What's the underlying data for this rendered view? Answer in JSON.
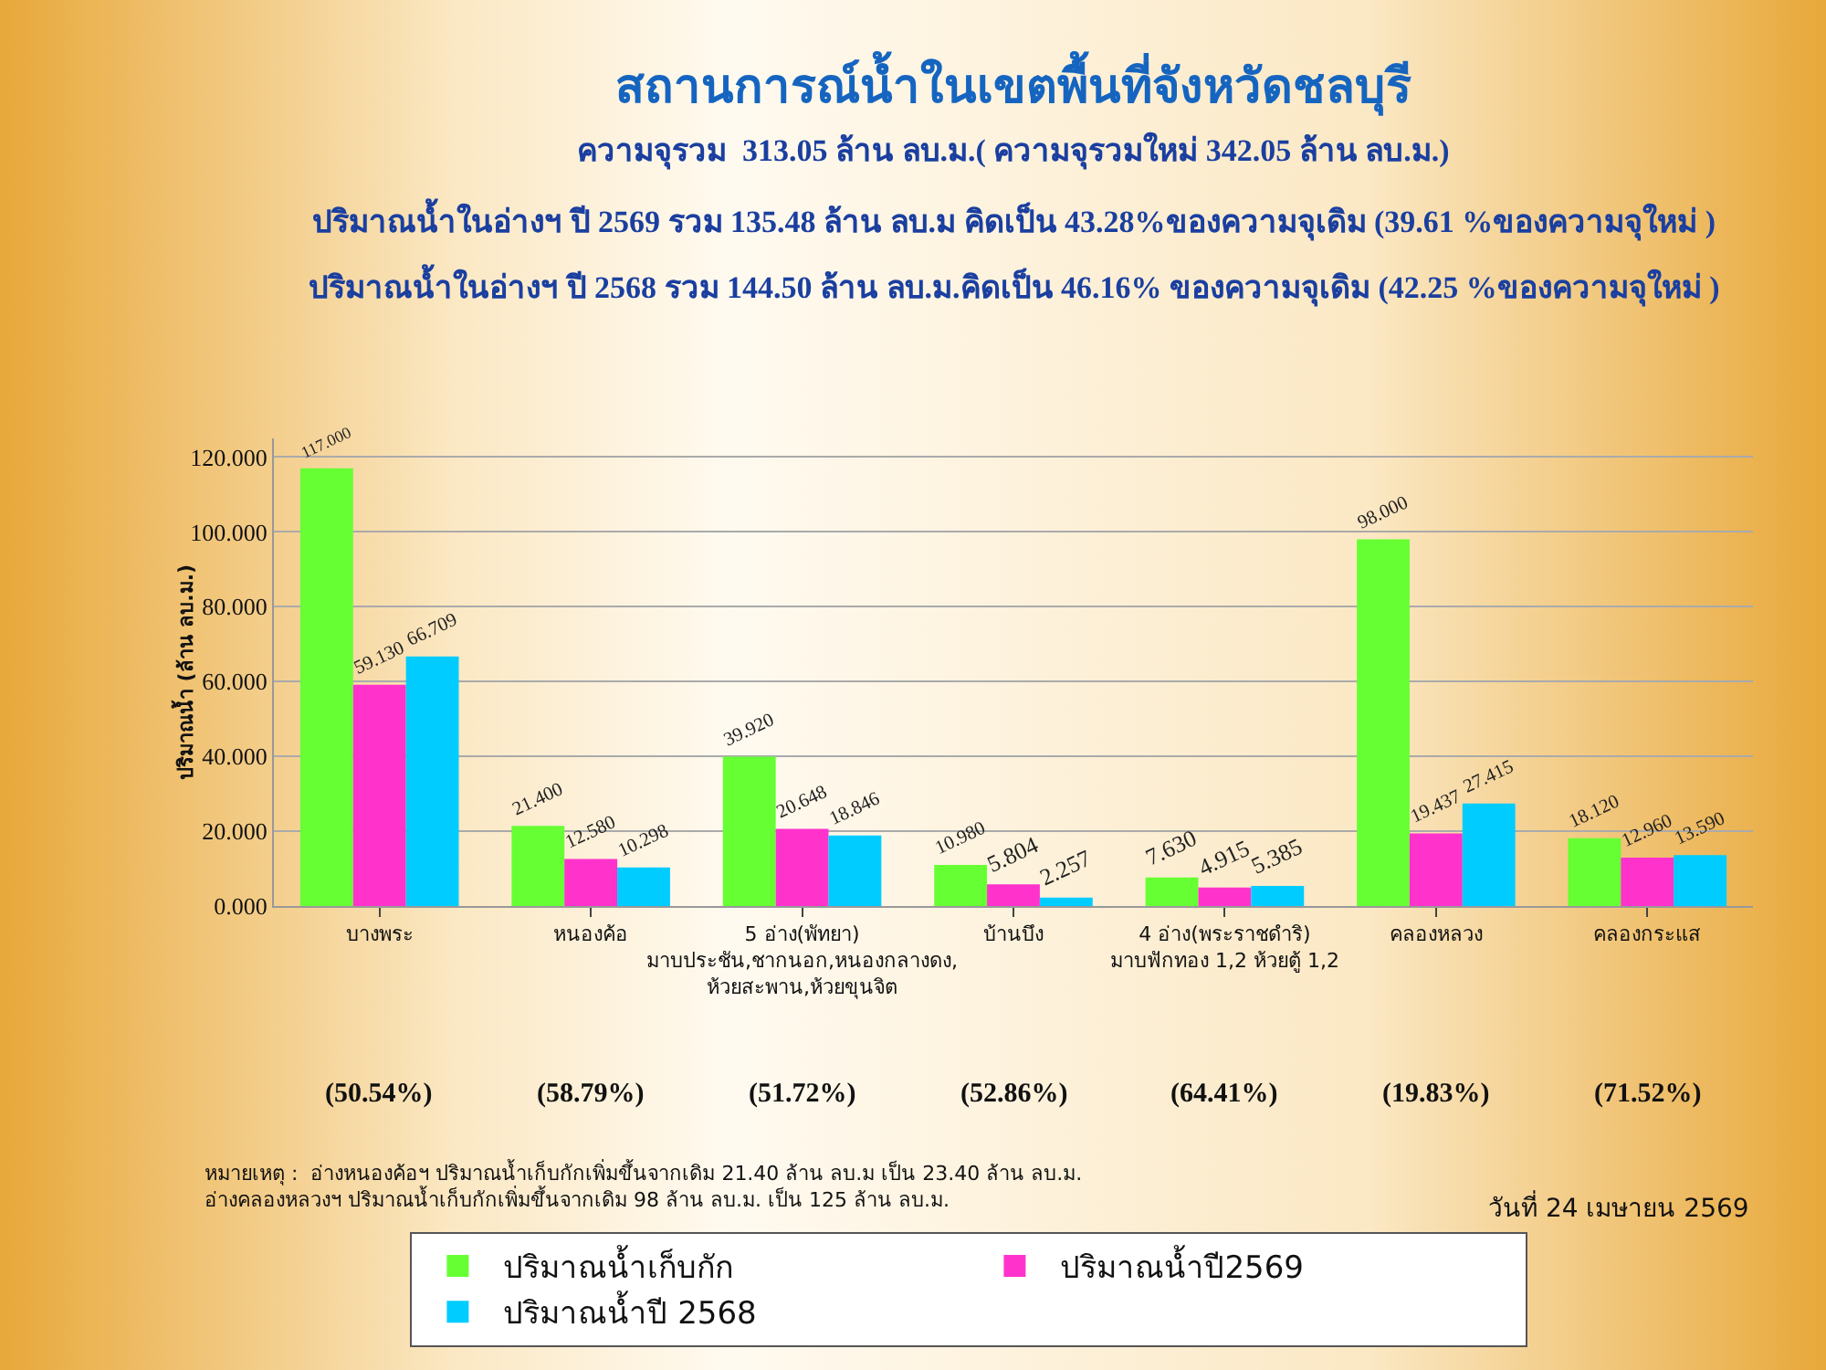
{
  "chart_data": {
    "type": "bar",
    "title": "สถานการณ์น้ำในเขตพื้นที่จังหวัดชลบุรี",
    "subtitle": "ความจุรวม  313.05 ล้าน ลบ.ม.( ความจุรวมใหม่ 342.05 ล้าน ลบ.ม.)\nปริมาณน้ำในอ่างฯ ปี 2569 รวม 135.48 ล้าน ลบ.ม คิดเป็น 43.28%ของความจุเดิม (39.61 %ของความจุใหม่ )\nปริมาณน้ำในอ่างฯ ปี 2568 รวม 144.50 ล้าน ลบ.ม.คิดเป็น 46.16% ของความจุเดิม (42.25 %ของความจุใหม่ )",
    "ylabel": "ปริมาณน้ำ (ล้าน ลบ.ม.)",
    "categories": [
      "บางพระ",
      "หนองค้อ",
      "5 อ่าง(พัทยา)\nมาบประชัน,ชากนอก,หนองกลางดง,\nห้วยสะพาน,ห้วยขุนจิต",
      "บ้านบึง",
      "4 อ่าง(พระราชดำริ)\nมาบฟักทอง 1,2 ห้วยตู้ 1,2",
      "คลองหลวง",
      "คลองกระแส"
    ],
    "series": [
      {
        "name": "ปริมาณน้ำเก็บกัก",
        "color": "#66ff33",
        "values": [
          117,
          21.4,
          39.92,
          10.98,
          7.63,
          98,
          18.12
        ],
        "value_labels": [
          "117.000",
          "21.400",
          "39.920",
          "10.980",
          "7.630",
          "98.000",
          "18.120"
        ]
      },
      {
        "name": "ปริมาณน้ำปี2569",
        "color": "#ff33cc",
        "values": [
          59.13,
          12.58,
          20.648,
          5.804,
          4.915,
          19.437,
          12.96
        ],
        "value_labels": [
          "59.130",
          "12.580",
          "20.648",
          "5.804",
          "4.915",
          "19.437",
          "12.960"
        ]
      },
      {
        "name": "ปริมาณน้ำปี 2568",
        "color": "#00ccff",
        "values": [
          66.709,
          10.298,
          18.846,
          2.257,
          5.385,
          27.415,
          13.59
        ],
        "value_labels": [
          "66.709",
          "10.298",
          "18.846",
          "2.257",
          "5.385",
          "27.415",
          "13.590"
        ]
      }
    ],
    "ylim": [
      0,
      125
    ],
    "yticks": [
      {
        "value": 0,
        "label": "0.000"
      },
      {
        "value": 20,
        "label": "20.000"
      },
      {
        "value": 40,
        "label": "40.000"
      },
      {
        "value": 60,
        "label": "60.000"
      },
      {
        "value": 80,
        "label": "80.000"
      },
      {
        "value": 100,
        "label": "100.000"
      },
      {
        "value": 120,
        "label": "120.000"
      }
    ],
    "grid": "y",
    "legend": "bottom",
    "annotations": [
      "(50.54%)",
      "(58.79%)",
      "(51.72%)",
      "(52.86%)",
      "(64.41%)",
      "(19.83%)",
      "(71.52%)",
      "หมายเหตุ :  อ่างหนองค้อฯ ปริมาณน้ำเก็บกักเพิ่มขึ้นจากเดิม 21.40 ล้าน ลบ.ม เป็น 23.40 ล้าน ลบ.ม.\nอ่างคลองหลวงฯ ปริมาณน้ำเก็บกักเพิ่มขึ้นจากเดิม 98 ล้าน ลบ.ม. เป็น 125 ล้าน ลบ.ม.",
      "วันที่ 24 เมษายน 2569"
    ]
  }
}
